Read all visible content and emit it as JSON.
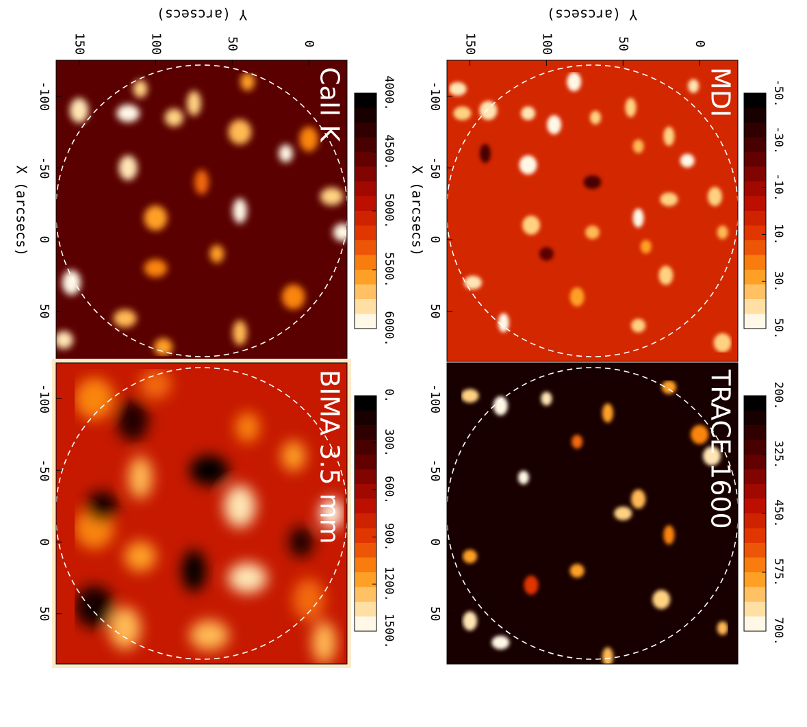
{
  "figure": {
    "axis_label_y": "Y (arcsecs)",
    "axis_label_x": "X (arcsecs)"
  },
  "chart_data": [
    {
      "type": "heatmap",
      "title": "MDI",
      "xlabel": "X (arcsecs)",
      "ylabel": "Y (arcsecs)",
      "xlim": [
        -125,
        85
      ],
      "ylim": [
        -25,
        165
      ],
      "x_ticks": [
        "-100",
        "-50",
        "0",
        "50"
      ],
      "y_ticks": [
        "0",
        "50",
        "100",
        "150"
      ],
      "colorbar_ticks": [
        "-50.",
        "-30.",
        "-10.",
        "10.",
        "30.",
        "50."
      ],
      "colorbar_range": [
        -50,
        50
      ],
      "background_level": 0.55,
      "features": [
        {
          "x": -107,
          "y": 4,
          "level": 0.95
        },
        {
          "x": -110,
          "y": 82,
          "level": 1.0
        },
        {
          "x": -105,
          "y": 158,
          "level": 0.95
        },
        {
          "x": -92,
          "y": 45,
          "level": 0.9
        },
        {
          "x": -88,
          "y": 112,
          "level": 0.95
        },
        {
          "x": -90,
          "y": 138,
          "level": 0.95
        },
        {
          "x": -85,
          "y": 68,
          "level": 0.9
        },
        {
          "x": -80,
          "y": 95,
          "level": 1.0
        },
        {
          "x": -88,
          "y": 155,
          "level": 0.9
        },
        {
          "x": -72,
          "y": 20,
          "level": 0.9
        },
        {
          "x": -55,
          "y": 8,
          "level": 1.0
        },
        {
          "x": -52,
          "y": 112,
          "level": 1.0
        },
        {
          "x": -65,
          "y": 40,
          "level": 0.85
        },
        {
          "x": -30,
          "y": -10,
          "level": 0.9
        },
        {
          "x": -28,
          "y": 20,
          "level": 0.9
        },
        {
          "x": -15,
          "y": 40,
          "level": 1.0
        },
        {
          "x": -5,
          "y": 70,
          "level": 0.85
        },
        {
          "x": -10,
          "y": 110,
          "level": 0.9
        },
        {
          "x": 5,
          "y": 35,
          "level": 0.8
        },
        {
          "x": 25,
          "y": 22,
          "level": 0.9
        },
        {
          "x": 30,
          "y": 148,
          "level": 0.95
        },
        {
          "x": 58,
          "y": 128,
          "level": 1.0
        },
        {
          "x": 60,
          "y": 40,
          "level": 0.9
        },
        {
          "x": 72,
          "y": -15,
          "level": 0.9
        },
        {
          "x": -5,
          "y": -15,
          "level": 0.85
        },
        {
          "x": 40,
          "y": 80,
          "level": 0.8
        },
        {
          "x": -40,
          "y": 70,
          "level": 0.2
        },
        {
          "x": -60,
          "y": 140,
          "level": 0.2
        },
        {
          "x": 10,
          "y": 100,
          "level": 0.25
        }
      ]
    },
    {
      "type": "heatmap",
      "title": "TRACE 1600",
      "xlabel": "X (arcsecs)",
      "ylabel": "Y (arcsecs)",
      "xlim": [
        -125,
        85
      ],
      "ylim": [
        -25,
        165
      ],
      "x_ticks": [
        "-100",
        "-50",
        "0",
        "50"
      ],
      "y_ticks": [],
      "colorbar_ticks": [
        "200.",
        "325.",
        "450.",
        "575.",
        "700."
      ],
      "colorbar_range": [
        200,
        700
      ],
      "background_level": 0.07,
      "features": [
        {
          "x": -100,
          "y": 100,
          "level": 0.95
        },
        {
          "x": -95,
          "y": 130,
          "level": 1.0
        },
        {
          "x": -102,
          "y": 150,
          "level": 0.9
        },
        {
          "x": -90,
          "y": 60,
          "level": 0.8
        },
        {
          "x": -108,
          "y": 20,
          "level": 0.8
        },
        {
          "x": -60,
          "y": -8,
          "level": 0.95
        },
        {
          "x": -45,
          "y": 115,
          "level": 1.0
        },
        {
          "x": -30,
          "y": 40,
          "level": 0.85
        },
        {
          "x": -20,
          "y": 50,
          "level": 0.9
        },
        {
          "x": -5,
          "y": 20,
          "level": 0.75
        },
        {
          "x": 20,
          "y": 80,
          "level": 0.8
        },
        {
          "x": 40,
          "y": 25,
          "level": 0.9
        },
        {
          "x": 60,
          "y": -15,
          "level": 0.85
        },
        {
          "x": 55,
          "y": 150,
          "level": 0.95
        },
        {
          "x": 70,
          "y": 130,
          "level": 1.0
        },
        {
          "x": 80,
          "y": 60,
          "level": 0.85
        },
        {
          "x": 10,
          "y": 150,
          "level": 0.8
        },
        {
          "x": -75,
          "y": 0,
          "level": 0.75
        },
        {
          "x": -70,
          "y": 80,
          "level": 0.7
        },
        {
          "x": 30,
          "y": 110,
          "level": 0.6
        }
      ]
    },
    {
      "type": "heatmap",
      "title": "CaII K",
      "xlabel": "X (arcsecs)",
      "ylabel": "Y (arcsecs)",
      "xlim": [
        -125,
        85
      ],
      "ylim": [
        -25,
        165
      ],
      "x_ticks": [
        "-100",
        "-50",
        "0",
        "50"
      ],
      "y_ticks": [
        "0",
        "50",
        "100",
        "150"
      ],
      "colorbar_ticks": [
        "4000.",
        "4500.",
        "5000.",
        "5500.",
        "6000."
      ],
      "colorbar_range": [
        4000,
        6000
      ],
      "background_level": 0.25,
      "features": [
        {
          "x": -105,
          "y": 110,
          "level": 0.9
        },
        {
          "x": -90,
          "y": 150,
          "level": 0.95
        },
        {
          "x": -88,
          "y": 118,
          "level": 1.0
        },
        {
          "x": -95,
          "y": 75,
          "level": 0.9
        },
        {
          "x": -85,
          "y": 88,
          "level": 0.9
        },
        {
          "x": -75,
          "y": 45,
          "level": 0.85
        },
        {
          "x": -60,
          "y": 15,
          "level": 1.0
        },
        {
          "x": -50,
          "y": 118,
          "level": 0.95
        },
        {
          "x": -30,
          "y": -15,
          "level": 0.9
        },
        {
          "x": -20,
          "y": 45,
          "level": 1.0
        },
        {
          "x": -5,
          "y": -22,
          "level": 1.0
        },
        {
          "x": -15,
          "y": 100,
          "level": 0.8
        },
        {
          "x": 10,
          "y": 60,
          "level": 0.8
        },
        {
          "x": 30,
          "y": 155,
          "level": 1.0
        },
        {
          "x": 55,
          "y": 120,
          "level": 0.85
        },
        {
          "x": 65,
          "y": 45,
          "level": 0.85
        },
        {
          "x": 70,
          "y": 160,
          "level": 0.95
        },
        {
          "x": 40,
          "y": 10,
          "level": 0.75
        },
        {
          "x": -110,
          "y": 40,
          "level": 0.8
        },
        {
          "x": -70,
          "y": 0,
          "level": 0.75
        },
        {
          "x": 20,
          "y": 100,
          "level": 0.75
        },
        {
          "x": -40,
          "y": 70,
          "level": 0.7
        },
        {
          "x": 75,
          "y": 95,
          "level": 0.8
        }
      ]
    },
    {
      "type": "heatmap",
      "title": "BIMA 3.5 mm",
      "xlabel": "X (arcsecs)",
      "ylabel": "Y (arcsecs)",
      "xlim": [
        -125,
        85
      ],
      "ylim": [
        -25,
        165
      ],
      "x_ticks": [
        "-100",
        "-50",
        "0",
        "50"
      ],
      "y_ticks": [],
      "colorbar_ticks": [
        "0.",
        "300.",
        "600.",
        "900.",
        "1200.",
        "1500."
      ],
      "colorbar_range": [
        0,
        1500
      ],
      "background_level": 0.5,
      "features": [
        {
          "x": -20,
          "y": -15,
          "level": 1.0
        },
        {
          "x": -25,
          "y": 45,
          "level": 0.95
        },
        {
          "x": 25,
          "y": 40,
          "level": 0.95
        },
        {
          "x": -45,
          "y": 110,
          "level": 0.85
        },
        {
          "x": -110,
          "y": 100,
          "level": 0.7
        },
        {
          "x": -100,
          "y": 140,
          "level": 0.75
        },
        {
          "x": -60,
          "y": 10,
          "level": 0.8
        },
        {
          "x": 60,
          "y": 120,
          "level": 0.85
        },
        {
          "x": 65,
          "y": 65,
          "level": 0.85
        },
        {
          "x": 70,
          "y": -10,
          "level": 0.85
        },
        {
          "x": 10,
          "y": 110,
          "level": 0.8
        },
        {
          "x": -10,
          "y": 140,
          "level": 0.75
        },
        {
          "x": -80,
          "y": 40,
          "level": 0.75
        },
        {
          "x": 40,
          "y": 0,
          "level": 0.7
        },
        {
          "x": -50,
          "y": 65,
          "level": 0.0
        },
        {
          "x": 20,
          "y": 75,
          "level": 0.0
        },
        {
          "x": -25,
          "y": 135,
          "level": 0.05
        },
        {
          "x": 45,
          "y": 140,
          "level": 0.05
        },
        {
          "x": 0,
          "y": 5,
          "level": 0.05
        },
        {
          "x": -85,
          "y": 115,
          "level": 0.1
        }
      ]
    }
  ]
}
